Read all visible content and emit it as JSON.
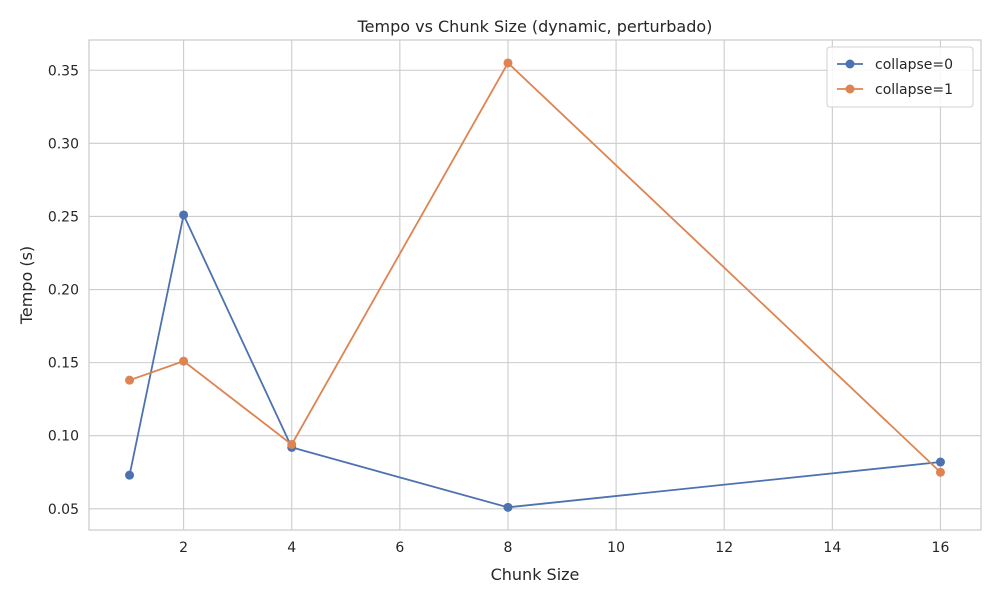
{
  "chart_data": {
    "type": "line",
    "title": "Tempo vs Chunk Size (dynamic, perturbado)",
    "xlabel": "Chunk Size",
    "ylabel": "Tempo (s)",
    "xlim": [
      0.25,
      16.75
    ],
    "ylim": [
      0.0355,
      0.3707
    ],
    "x_ticks": [
      2,
      4,
      6,
      8,
      10,
      12,
      14,
      16
    ],
    "y_ticks": [
      0.05,
      0.1,
      0.15,
      0.2,
      0.25,
      0.3,
      0.35
    ],
    "x_tick_labels": [
      "2",
      "4",
      "6",
      "8",
      "10",
      "12",
      "14",
      "16"
    ],
    "y_tick_labels": [
      "0.05",
      "0.10",
      "0.15",
      "0.20",
      "0.25",
      "0.30",
      "0.35"
    ],
    "grid": true,
    "legend_position": "top-right",
    "series": [
      {
        "name": "collapse=0",
        "color": "#4c72b0",
        "x": [
          1,
          2,
          4,
          8,
          16
        ],
        "values": [
          0.073,
          0.251,
          0.092,
          0.051,
          0.082
        ]
      },
      {
        "name": "collapse=1",
        "color": "#dd8452",
        "x": [
          1,
          2,
          4,
          8,
          16
        ],
        "values": [
          0.138,
          0.151,
          0.094,
          0.355,
          0.075
        ]
      }
    ]
  }
}
